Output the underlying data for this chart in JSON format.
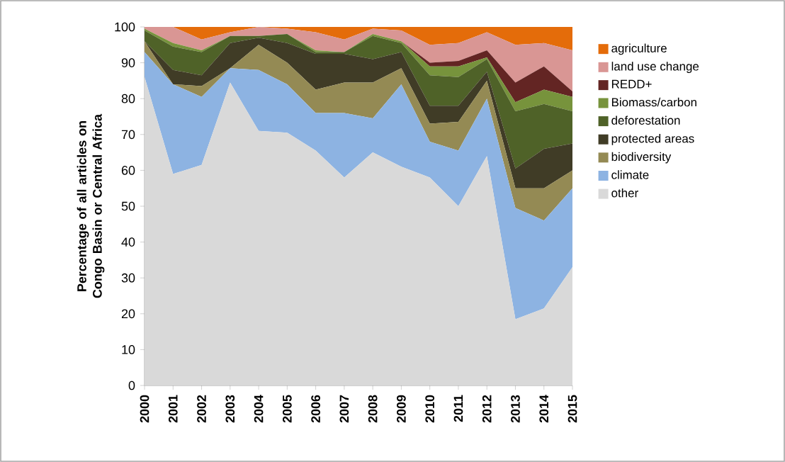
{
  "chart_data": {
    "type": "area",
    "stacked": true,
    "ylabel": "Percentage of all articles on Congo Basin or Central Africa",
    "categories": [
      "2000",
      "2001",
      "2002",
      "2003",
      "2004",
      "2005",
      "2006",
      "2007",
      "2008",
      "2009",
      "2010",
      "2011",
      "2012",
      "2013",
      "2014",
      "2015"
    ],
    "ylim": [
      0,
      100
    ],
    "yticks": [
      0,
      10,
      20,
      30,
      40,
      50,
      60,
      70,
      80,
      90,
      100
    ],
    "grid": false,
    "legend": "right",
    "series": [
      {
        "name": "other",
        "color": "#d9d9d9",
        "values": [
          86,
          59,
          61.5,
          84.5,
          71,
          70.5,
          65.5,
          58,
          65,
          61,
          58,
          50,
          64,
          18.5,
          21.5,
          33
        ]
      },
      {
        "name": "climate",
        "color": "#8db3e2",
        "values": [
          7,
          25,
          19,
          4,
          17,
          13.5,
          10.5,
          18,
          9.5,
          23,
          10,
          15.5,
          16,
          31,
          24.5,
          22
        ]
      },
      {
        "name": "biodiversity",
        "color": "#948a54",
        "values": [
          3,
          0,
          3,
          0,
          7,
          6,
          6.5,
          8.5,
          10,
          4.5,
          5,
          8,
          5,
          5.5,
          9,
          5
        ]
      },
      {
        "name": "protected areas",
        "color": "#403c26",
        "values": [
          0,
          4,
          3,
          7,
          2,
          5.5,
          10,
          8,
          6.5,
          4.5,
          5,
          4.5,
          2.5,
          5.5,
          11,
          7.5
        ]
      },
      {
        "name": "deforestation",
        "color": "#4f6228",
        "values": [
          3,
          6.5,
          6.5,
          2,
          0.5,
          2.5,
          0.5,
          0.5,
          6.5,
          2.5,
          8.5,
          8,
          3.5,
          16,
          12.5,
          9
        ]
      },
      {
        "name": "Biomass/carbon",
        "color": "#77933c",
        "values": [
          0.5,
          1,
          0.5,
          0,
          0,
          0,
          0.5,
          0,
          0.5,
          0.5,
          2.5,
          3,
          0.5,
          2.5,
          4,
          4
        ]
      },
      {
        "name": "REDD+",
        "color": "#632523",
        "values": [
          0,
          0,
          0,
          0,
          0,
          0,
          0,
          0,
          0,
          0,
          1,
          1.5,
          2,
          5.5,
          6.5,
          1.5
        ]
      },
      {
        "name": "land use change",
        "color": "#d99694",
        "values": [
          0.5,
          4.5,
          3,
          1,
          2.5,
          1.5,
          5,
          3.5,
          1.5,
          3,
          5,
          5,
          5,
          10.5,
          6.5,
          11.5
        ]
      },
      {
        "name": "agriculture",
        "color": "#e46c0a",
        "values": [
          0,
          0,
          3.5,
          1.5,
          0,
          0.5,
          1.5,
          3.5,
          0.5,
          1,
          5,
          4.5,
          1.5,
          5,
          4.5,
          6.5
        ]
      }
    ]
  }
}
